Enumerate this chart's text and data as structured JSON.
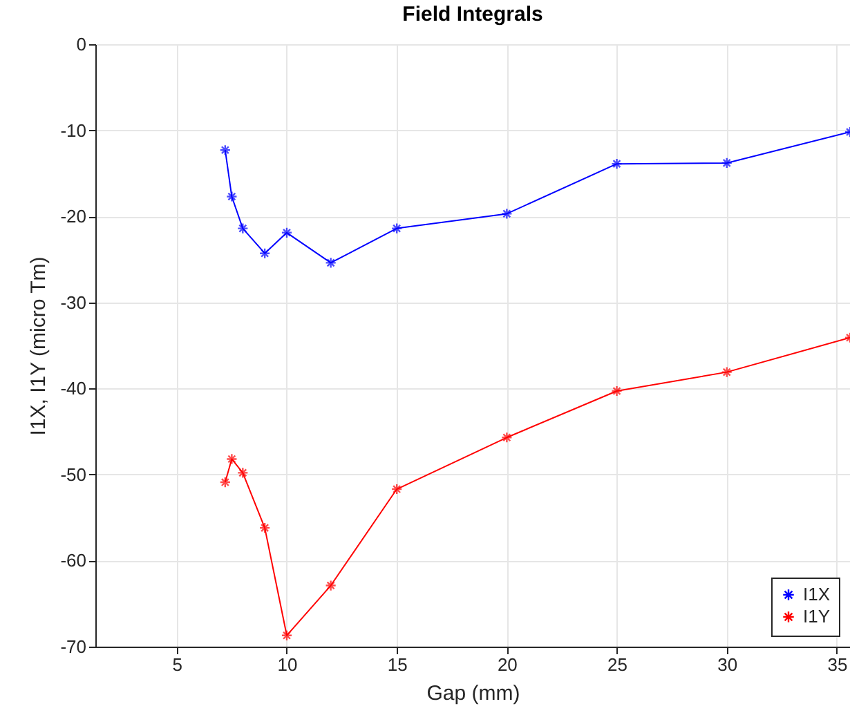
{
  "chart_data": {
    "type": "line",
    "title": "Field Integrals",
    "xlabel": "Gap (mm)",
    "ylabel": "I1X, I1Y (micro Tm)",
    "xlim": [
      1.3,
      35.6
    ],
    "xticks": [
      5,
      10,
      15,
      20,
      25,
      30,
      35
    ],
    "ylim": [
      -70,
      0
    ],
    "yticks": [
      -70,
      -60,
      -50,
      -40,
      -30,
      -20,
      -10,
      0
    ],
    "grid": true,
    "legend": "bottom right",
    "marker": "cross",
    "line_style": "solid",
    "series": [
      {
        "name": "I1X",
        "color": "#0000ff",
        "x": [
          7.2,
          7.5,
          8,
          9,
          10,
          12,
          15,
          20,
          25,
          30,
          35.6
        ],
        "values": [
          -12.3,
          -17.7,
          -21.4,
          -24.3,
          -21.9,
          -25.4,
          -21.4,
          -19.7,
          -13.9,
          -13.8,
          -10.2
        ]
      },
      {
        "name": "I1Y",
        "color": "#ff0000",
        "x": [
          7.2,
          7.5,
          8,
          9,
          10,
          12,
          15,
          20,
          25,
          30,
          35.6
        ],
        "values": [
          -50.9,
          -48.2,
          -49.8,
          -56.2,
          -68.7,
          -62.9,
          -51.7,
          -45.7,
          -40.3,
          -38.1,
          -34.1
        ]
      }
    ]
  }
}
